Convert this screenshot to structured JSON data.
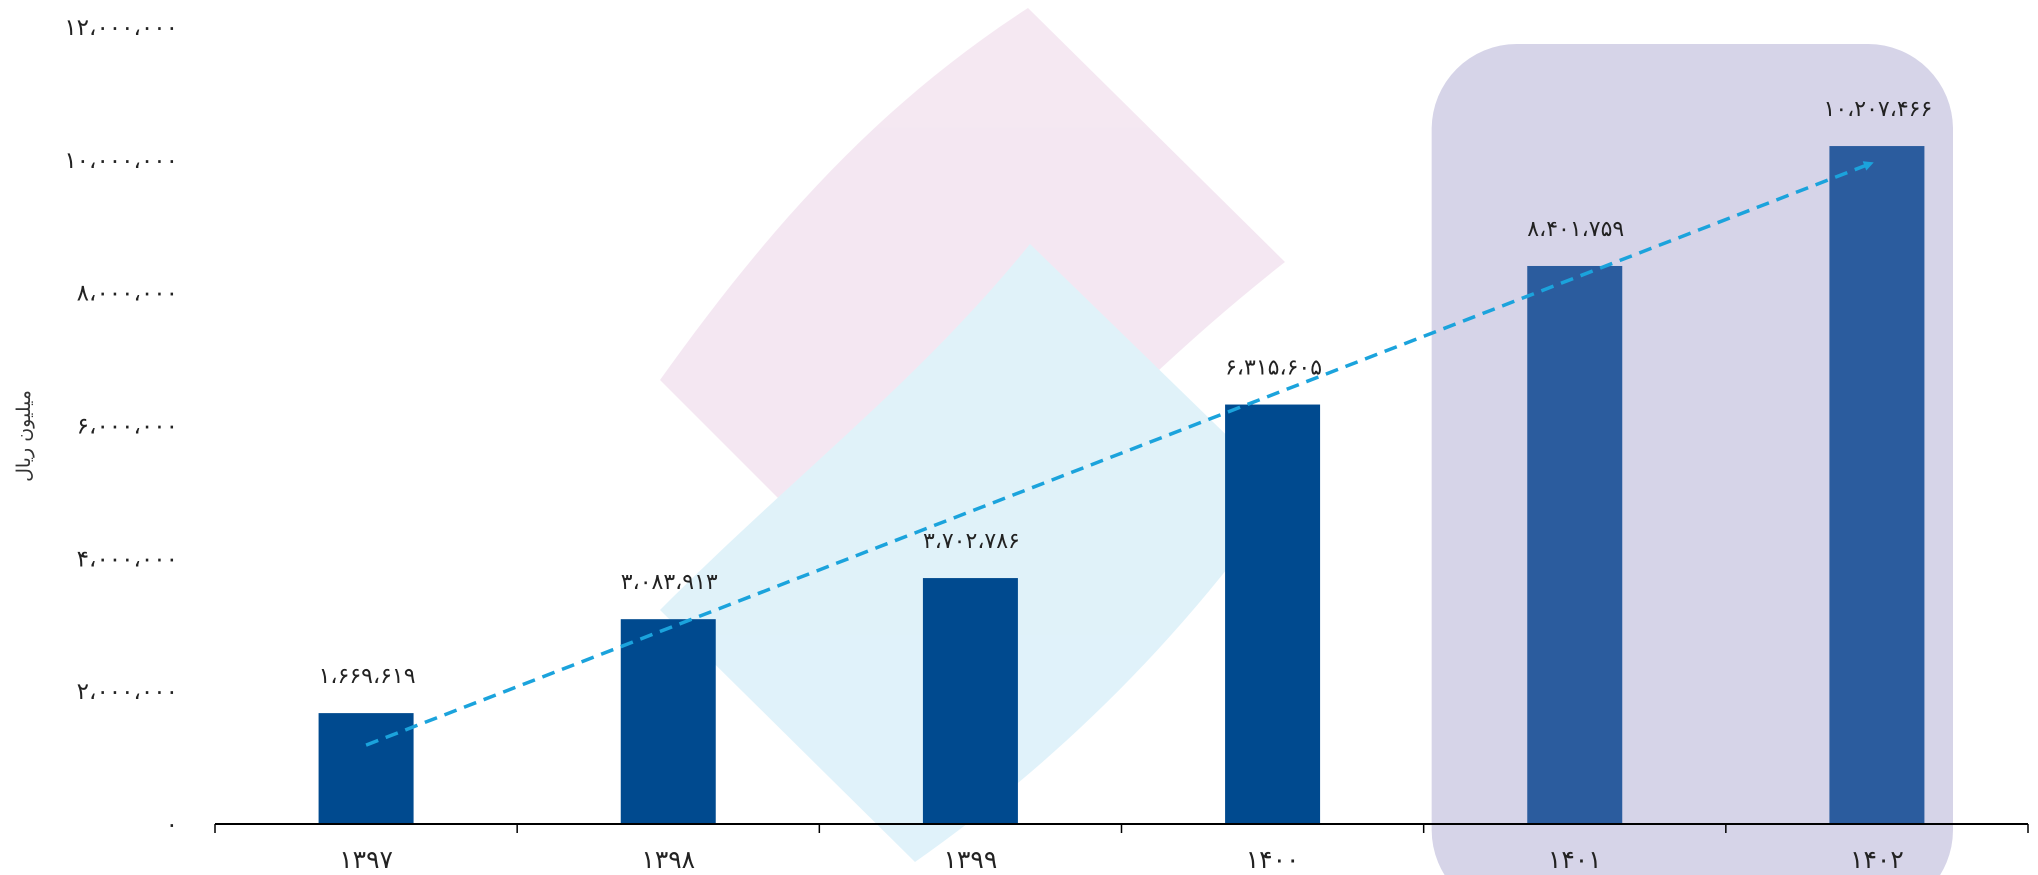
{
  "chart_data": {
    "type": "bar",
    "ylabel": "میلیون ریال",
    "ylim": [
      0,
      12000000
    ],
    "y_ticks": [
      {
        "value": 0,
        "label": "۰"
      },
      {
        "value": 2000000,
        "label": "۲،۰۰۰،۰۰۰"
      },
      {
        "value": 4000000,
        "label": "۴،۰۰۰،۰۰۰"
      },
      {
        "value": 6000000,
        "label": "۶،۰۰۰،۰۰۰"
      },
      {
        "value": 8000000,
        "label": "۸،۰۰۰،۰۰۰"
      },
      {
        "value": 10000000,
        "label": "۱۰،۰۰۰،۰۰۰"
      },
      {
        "value": 12000000,
        "label": "۱۲،۰۰۰،۰۰۰"
      }
    ],
    "categories": [
      "۱۳۹۷",
      "۱۳۹۸",
      "۱۳۹۹",
      "۱۴۰۰",
      "۱۴۰۱",
      "۱۴۰۲"
    ],
    "values": [
      1669619,
      3083913,
      3702786,
      6315605,
      8401759,
      10207466
    ],
    "data_labels": [
      "۱،۶۶۹،۶۱۹",
      "۳،۰۸۳،۹۱۳",
      "۳،۷۰۲،۷۸۶",
      "۶،۳۱۵،۶۰۵",
      "۸،۴۰۱،۷۵۹",
      "۱۰،۲۰۷،۴۶۶"
    ],
    "highlighted_categories": [
      "۱۴۰۱",
      "۱۴۰۲"
    ],
    "trend_arrow": true,
    "grid": false,
    "colors": {
      "bar": "#004a8f",
      "bar_highlighted": "#2b5c9e",
      "highlight_band": "#d6d4e8",
      "trend": "#1ba3dc",
      "axis": "#000000"
    }
  }
}
